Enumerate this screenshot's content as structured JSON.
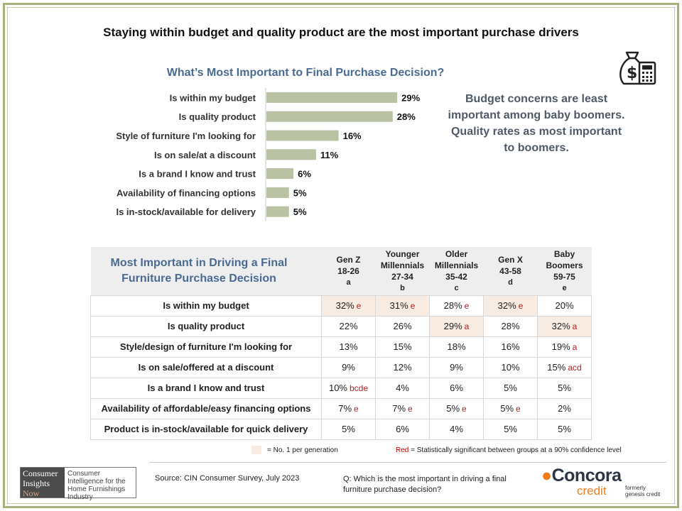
{
  "title": "Staying within budget and quality product are the most important purchase drivers",
  "chart_data": {
    "type": "bar",
    "orientation": "horizontal",
    "title": "What’s Most Important to Final Purchase Decision?",
    "categories": [
      "Is within my budget",
      "Is quality product",
      "Style of furniture I'm looking for",
      "Is on sale/at a discount",
      "Is a brand I know and trust",
      "Availability of financing options",
      "Is in-stock/available for delivery"
    ],
    "values": [
      29,
      28,
      16,
      11,
      6,
      5,
      5
    ],
    "data_labels": [
      "29%",
      "28%",
      "16%",
      "11%",
      "6%",
      "5%",
      "5%"
    ],
    "xlim": [
      0,
      35
    ],
    "grid": false,
    "bar_color": "#b9c3a3"
  },
  "callout": {
    "line1": "Budget concerns are least important among baby boomers.",
    "line2": "Quality rates as most important to boomers."
  },
  "table": {
    "title": "Most Important in Driving a Final Furniture Purchase Decision",
    "columns": [
      {
        "name": "Gen Z",
        "ages": "18-26",
        "letter": "a"
      },
      {
        "name": "Younger Millennials",
        "ages": "27-34",
        "letter": "b"
      },
      {
        "name": "Older Millennials",
        "ages": "35-42",
        "letter": "c"
      },
      {
        "name": "Gen X",
        "ages": "43-58",
        "letter": "d"
      },
      {
        "name": "Baby Boomers",
        "ages": "59-75",
        "letter": "e"
      }
    ],
    "rows": [
      {
        "label": "Is within my budget",
        "cells": [
          {
            "v": "32%",
            "sig": "e",
            "hl": true
          },
          {
            "v": "31%",
            "sig": "e",
            "hl": true
          },
          {
            "v": "28%",
            "sig": "e",
            "hl": false
          },
          {
            "v": "32%",
            "sig": "e",
            "hl": true
          },
          {
            "v": "20%",
            "sig": "",
            "hl": false
          }
        ]
      },
      {
        "label": "Is quality product",
        "cells": [
          {
            "v": "22%",
            "sig": "",
            "hl": false
          },
          {
            "v": "26%",
            "sig": "",
            "hl": false
          },
          {
            "v": "29%",
            "sig": "a",
            "hl": true
          },
          {
            "v": "28%",
            "sig": "",
            "hl": false
          },
          {
            "v": "32%",
            "sig": "a",
            "hl": true
          }
        ]
      },
      {
        "label": "Style/design of furniture I'm looking for",
        "cells": [
          {
            "v": "13%",
            "sig": "",
            "hl": false
          },
          {
            "v": "15%",
            "sig": "",
            "hl": false
          },
          {
            "v": "18%",
            "sig": "",
            "hl": false
          },
          {
            "v": "16%",
            "sig": "",
            "hl": false
          },
          {
            "v": "19%",
            "sig": "a",
            "hl": false
          }
        ]
      },
      {
        "label": "Is on sale/offered at a discount",
        "cells": [
          {
            "v": "9%",
            "sig": "",
            "hl": false
          },
          {
            "v": "12%",
            "sig": "",
            "hl": false
          },
          {
            "v": "9%",
            "sig": "",
            "hl": false
          },
          {
            "v": "10%",
            "sig": "",
            "hl": false
          },
          {
            "v": "15%",
            "sig": "acd",
            "hl": false
          }
        ]
      },
      {
        "label": "Is a brand I know and trust",
        "cells": [
          {
            "v": "10%",
            "sig": "bcde",
            "hl": false
          },
          {
            "v": "4%",
            "sig": "",
            "hl": false
          },
          {
            "v": "6%",
            "sig": "",
            "hl": false
          },
          {
            "v": "5%",
            "sig": "",
            "hl": false
          },
          {
            "v": "5%",
            "sig": "",
            "hl": false
          }
        ]
      },
      {
        "label": "Availability of affordable/easy financing options",
        "cells": [
          {
            "v": "7%",
            "sig": "e",
            "hl": false
          },
          {
            "v": "7%",
            "sig": "e",
            "hl": false
          },
          {
            "v": "5%",
            "sig": "e",
            "hl": false
          },
          {
            "v": "5%",
            "sig": "e",
            "hl": false
          },
          {
            "v": "2%",
            "sig": "",
            "hl": false
          }
        ]
      },
      {
        "label": "Product is in-stock/available for quick delivery",
        "cells": [
          {
            "v": "5%",
            "sig": "",
            "hl": false
          },
          {
            "v": "6%",
            "sig": "",
            "hl": false
          },
          {
            "v": "4%",
            "sig": "",
            "hl": false
          },
          {
            "v": "5%",
            "sig": "",
            "hl": false
          },
          {
            "v": "5%",
            "sig": "",
            "hl": false
          }
        ]
      }
    ],
    "highlight_color": "#f7ebe2",
    "sig_color": "#b21e1e"
  },
  "legend": {
    "highlight": "= No. 1 per generation",
    "red_word": "Red",
    "red_text": " = Statistically significant between groups at a 90% confidence level"
  },
  "footer": {
    "cin_logo_line1": "Consumer",
    "cin_logo_line2": "Insights",
    "cin_logo_line3": "Now",
    "cin_tagline": "Consumer Intelligence for the Home Furnishings Industry",
    "source": "Source:  CIN Consumer Survey, July 2023",
    "question": "Q: Which is the most important in driving a final furniture purchase decision?",
    "brand": "Concora",
    "brand_sub": "credit",
    "formerly_line1": "formerly",
    "formerly_line2": "genesis credit"
  },
  "icons": [
    "money-bag-calculator-icon"
  ]
}
